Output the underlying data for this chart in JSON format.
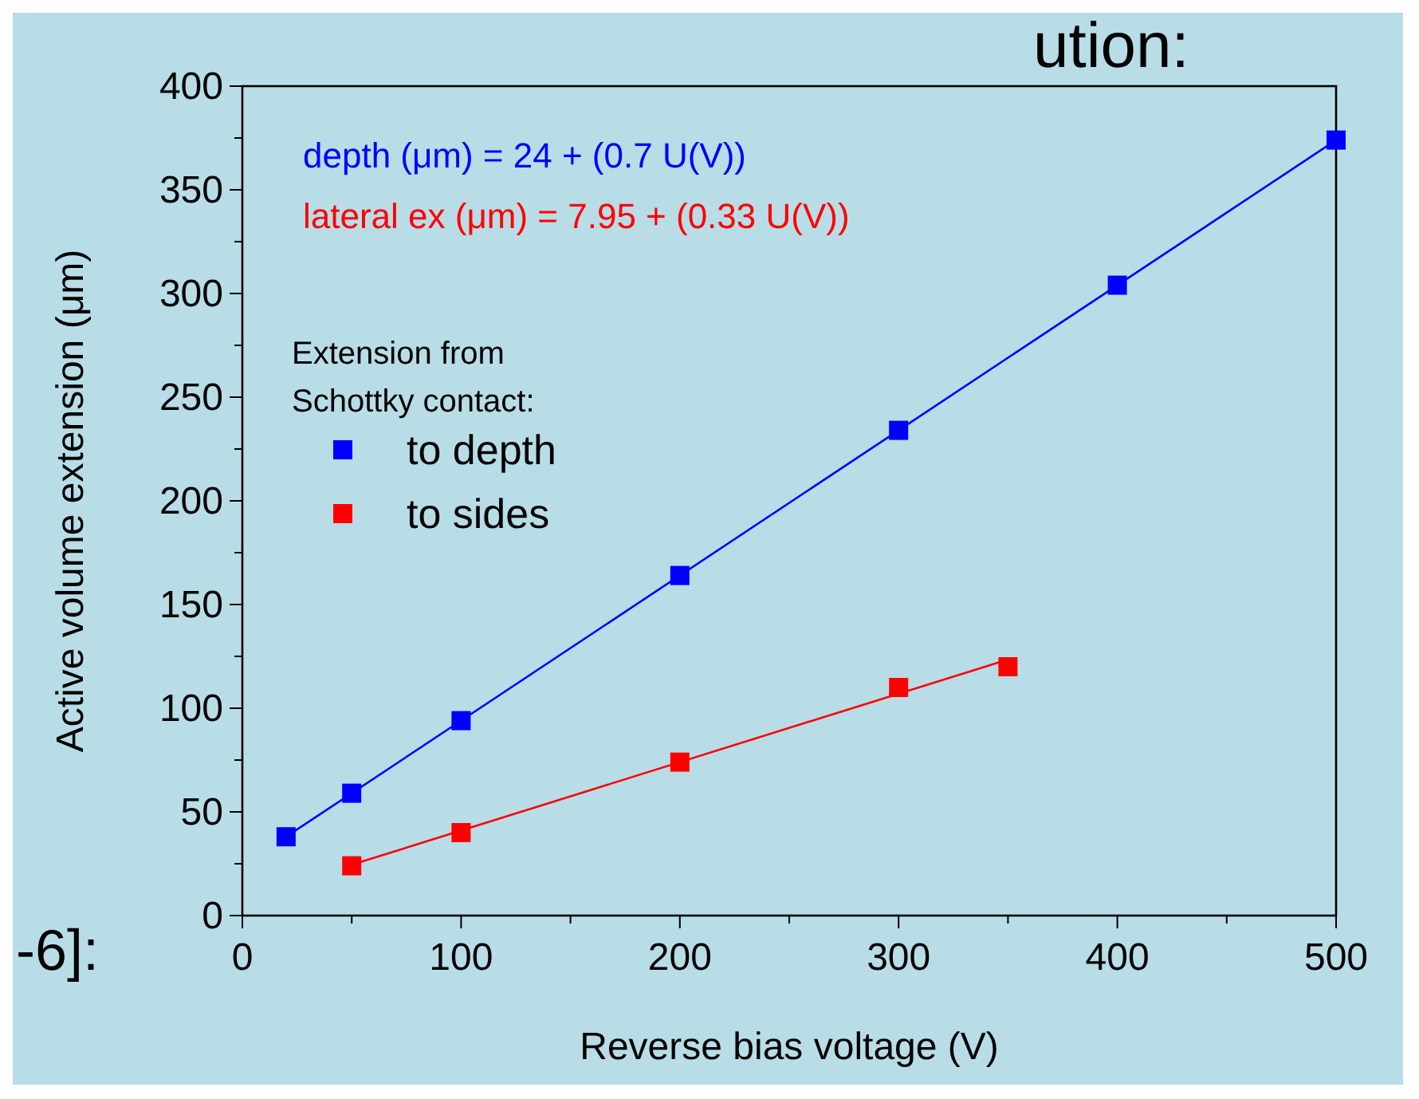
{
  "chart_data": {
    "type": "scatter",
    "xlabel": "Reverse bias voltage (V)",
    "ylabel": "Active volume extension (μm)",
    "legend_title": "Extension from\nSchottky contact:",
    "legend": "left",
    "marker": "square",
    "xlim": [
      0,
      500
    ],
    "xticks": [
      0,
      100,
      200,
      300,
      400,
      500
    ],
    "ylim": [
      0,
      400
    ],
    "yticks": [
      0,
      50,
      100,
      150,
      200,
      250,
      300,
      350,
      400
    ],
    "grid": false,
    "series": [
      {
        "name": "to depth",
        "color": "#0000ff",
        "x": [
          20,
          50,
          100,
          200,
          300,
          400,
          500
        ],
        "values": [
          38,
          59,
          94,
          164,
          234,
          304,
          374
        ]
      },
      {
        "name": "to sides",
        "color": "#ff0000",
        "x": [
          50,
          100,
          200,
          300,
          350
        ],
        "values": [
          24,
          40,
          74,
          110,
          120
        ]
      },
      {
        "type": "line",
        "marker": "none",
        "color": "#0000ff",
        "x": [
          20,
          500
        ],
        "values": [
          38,
          374
        ]
      },
      {
        "type": "line",
        "marker": "none",
        "color": "#ff0000",
        "x": [
          50,
          350
        ],
        "values": [
          24.5,
          123.5
        ]
      }
    ],
    "annotations": [
      "depth (μm) = 24 + (0.7 U(V))",
      "lateral ex (μm) = 7.95 + (0.33 U(V))",
      "ution:",
      "-6]:"
    ]
  }
}
